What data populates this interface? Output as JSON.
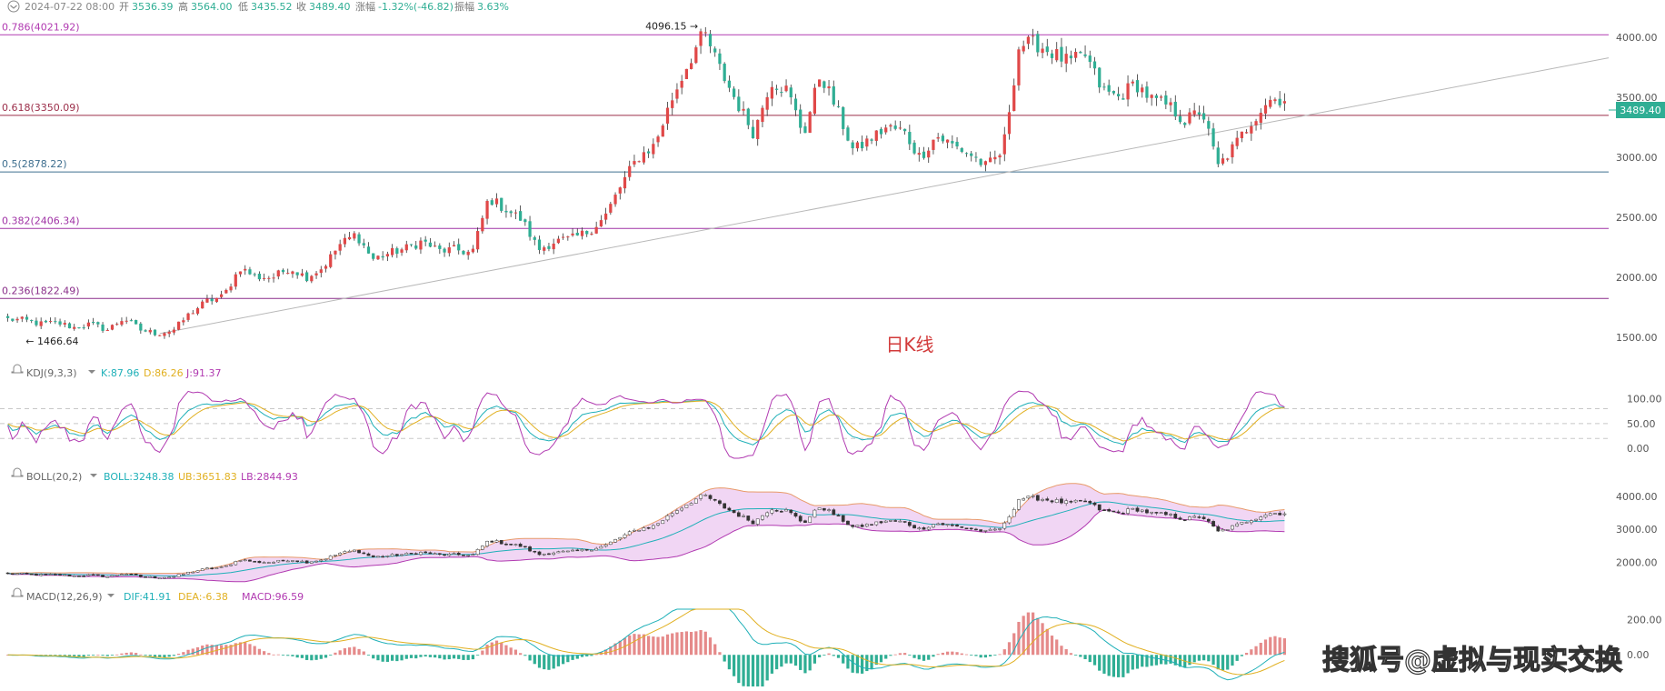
{
  "header": {
    "datetime": "2024-07-22 08:00",
    "open_label": "开",
    "open": "3536.39",
    "high_label": "高",
    "high": "3564.00",
    "low_label": "低",
    "low": "3435.52",
    "close_label": "收",
    "close": "3489.40",
    "change_label": "涨幅",
    "change": "-1.32%(-46.82)",
    "amplitude_label": "振幅",
    "amplitude": "3.63%"
  },
  "price_tag": "3489.40",
  "chart_title": "日K线",
  "watermark": "搜狐号@虚拟与现实交换",
  "chart_data": [
    {
      "type": "candlestick",
      "title": "日K线",
      "ylim": [
        1400,
        4100
      ],
      "yticks": [
        "4000.00",
        "3500.00",
        "3000.00",
        "2500.00",
        "2000.00",
        "1500.00"
      ],
      "ytick_values": [
        4000,
        3500,
        3000,
        2500,
        2000,
        1500
      ],
      "fib_levels": [
        {
          "label": "0.786(4021.92)",
          "value": 4021.92,
          "color": "#b13ab1"
        },
        {
          "label": "0.618(3350.09)",
          "value": 3350.09,
          "color": "#9c2f4a"
        },
        {
          "label": "0.5(2878.22)",
          "value": 2878.22,
          "color": "#3f6f8f"
        },
        {
          "label": "0.382(2406.34)",
          "value": 2406.34,
          "color": "#a033a6"
        },
        {
          "label": "0.236(1822.49)",
          "value": 1822.49,
          "color": "#8a2f8a"
        }
      ],
      "annotations": [
        {
          "text": "4096.15",
          "value": 4096.15
        },
        {
          "text": "1466.64",
          "value": 1466.64
        }
      ],
      "trendline": {
        "from": 1530,
        "to": 3830
      },
      "anchors": [
        1650,
        1640,
        1610,
        1620,
        1580,
        1610,
        1560,
        1660,
        1560,
        1530,
        1560,
        1700,
        1800,
        1840,
        2080,
        2000,
        2000,
        2080,
        2000,
        2080,
        2270,
        2360,
        2150,
        2200,
        2240,
        2300,
        2220,
        2230,
        2200,
        2660,
        2570,
        2480,
        2230,
        2300,
        2320,
        2380,
        2500,
        2770,
        3000,
        3100,
        3470,
        3780,
        4040,
        3720,
        3450,
        3200,
        3640,
        3560,
        3190,
        3700,
        3400,
        3050,
        3150,
        3250,
        3220,
        3000,
        3180,
        3100,
        3030,
        2920,
        3050,
        3940,
        3950,
        3870,
        3790,
        3850,
        3560,
        3500,
        3620,
        3480,
        3430,
        3300,
        3400,
        2920,
        3100,
        3300,
        3480,
        3490
      ],
      "colors": {
        "up": "#e04848",
        "down": "#2fae94",
        "wick": "#333333"
      }
    },
    {
      "type": "line",
      "title": "KDJ(9,3,3)",
      "series": [
        {
          "name": "K",
          "value": "K:87.96",
          "color": "#1fb0b8"
        },
        {
          "name": "D",
          "value": "D:86.26",
          "color": "#e1b021"
        },
        {
          "name": "J",
          "value": "J:91.37",
          "color": "#b13ab1"
        }
      ],
      "yticks": [
        "100.00",
        "50.00",
        "0.00"
      ],
      "ytick_values": [
        100,
        50,
        0
      ],
      "ylim": [
        -20,
        125
      ]
    },
    {
      "type": "line",
      "title": "BOLL(20,2)",
      "series": [
        {
          "name": "BOLL",
          "value": "BOLL:3248.38",
          "color": "#1fb0b8"
        },
        {
          "name": "UB",
          "value": "UB:3651.83",
          "color": "#e1b021"
        },
        {
          "name": "LB",
          "value": "LB:2844.93",
          "color": "#b13ab1"
        }
      ],
      "yticks": [
        "4000.00",
        "3000.00",
        "2000.00"
      ],
      "ytick_values": [
        4000,
        3000,
        2000
      ],
      "ylim": [
        1400,
        4300
      ]
    },
    {
      "type": "bar",
      "title": "MACD(12,26,9)",
      "series": [
        {
          "name": "DIF",
          "value": "DIF:41.91",
          "color": "#1fb0b8"
        },
        {
          "name": "DEA",
          "value": "DEA:-6.38",
          "color": "#e1b021"
        },
        {
          "name": "MACD",
          "value": "MACD:96.59",
          "color": "#b13ab1"
        }
      ],
      "yticks": [
        "200.00",
        "0.00"
      ],
      "ytick_values": [
        200,
        0
      ],
      "ylim": [
        -180,
        260
      ]
    }
  ]
}
